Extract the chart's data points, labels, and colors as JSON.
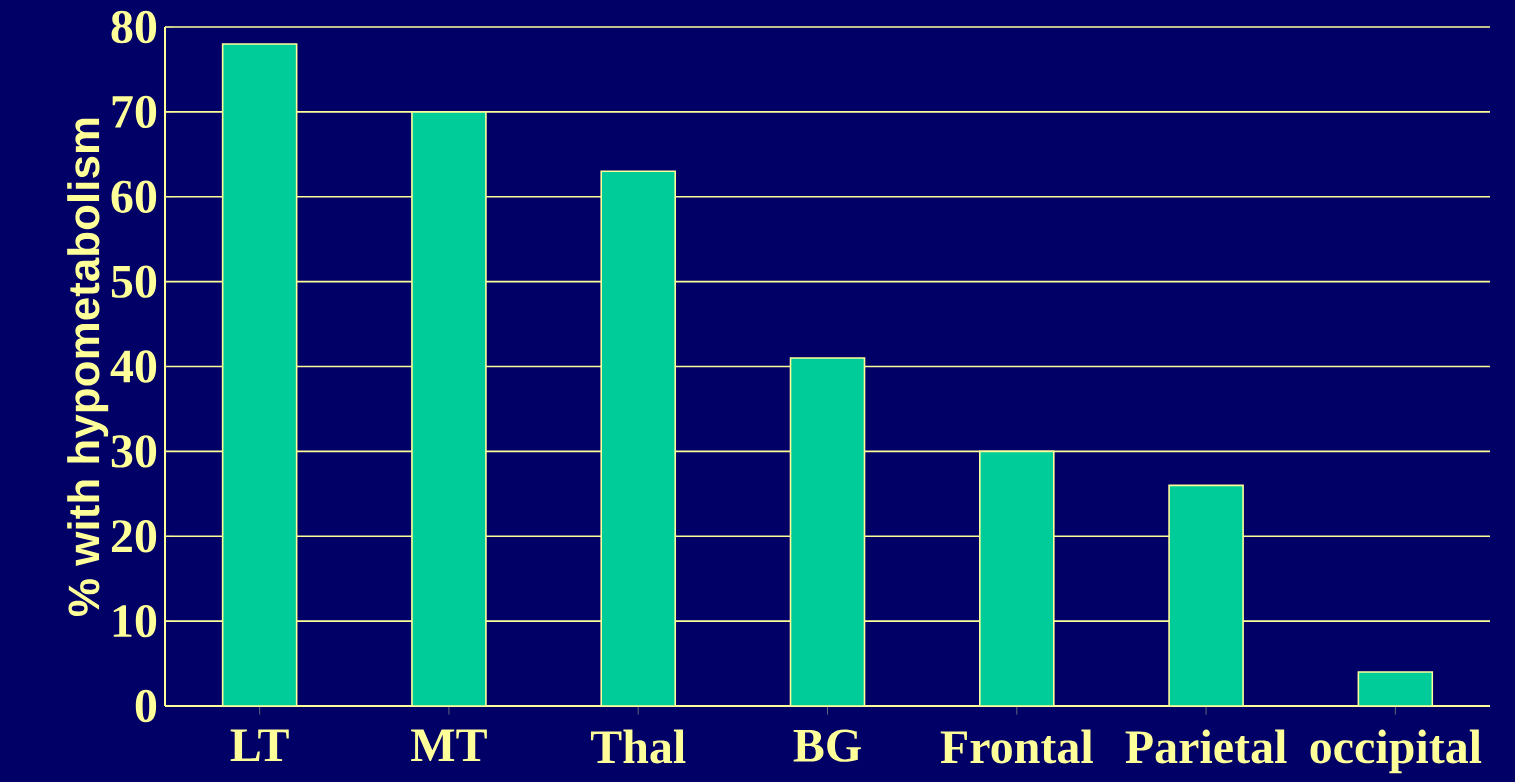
{
  "chart_data": {
    "type": "bar",
    "ylabel": "% with hypometabolism",
    "categories": [
      "LT",
      "MT",
      "Thal",
      "BG",
      "Frontal",
      "Parietal",
      "occipital"
    ],
    "values": [
      78,
      70,
      63,
      41,
      30,
      26,
      4
    ],
    "color": "#00cc99",
    "ylim": [
      0,
      80
    ],
    "yticks": [
      0,
      10,
      20,
      30,
      40,
      50,
      60,
      70,
      80
    ],
    "grid": "y"
  }
}
